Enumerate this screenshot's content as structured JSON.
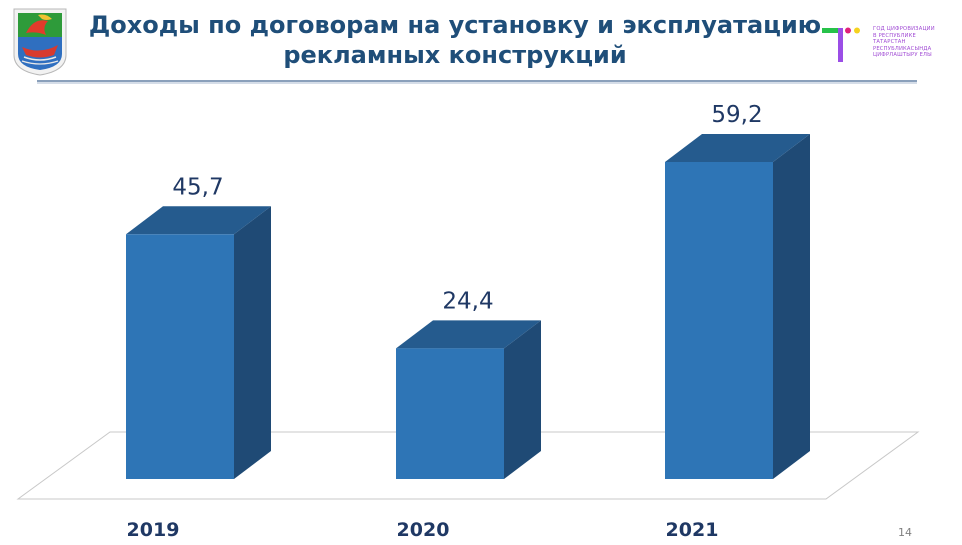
{
  "header": {
    "title_line1": "Доходы по договорам на установку и эксплуатацию",
    "title_line2": "рекламных конструкций"
  },
  "logos": {
    "digital_year_lines": [
      "ГОД ЦИФРОВИЗАЦИИ",
      "В РЕСПУБЛИКЕ",
      "ТАТАРСТАН",
      "РЕСПУБЛИКАСЫНДА",
      "ЦИФРЛАШТЫРУ ЕЛЫ"
    ]
  },
  "chart_data": {
    "type": "bar",
    "categories": [
      "2019",
      "2020",
      "2021"
    ],
    "values": [
      45.7,
      24.4,
      59.2
    ],
    "value_labels": [
      "45,7",
      "24,4",
      "59,2"
    ],
    "title": "",
    "xlabel": "",
    "ylabel": "",
    "ylim": [
      0,
      59.2
    ],
    "grid": false,
    "legend": "none",
    "colors": {
      "bar_front": "#2e75b6",
      "bar_top": "#255b8e",
      "bar_side": "#1f4a75",
      "label": "#1f3864"
    }
  },
  "footer": {
    "page_number": "14"
  }
}
